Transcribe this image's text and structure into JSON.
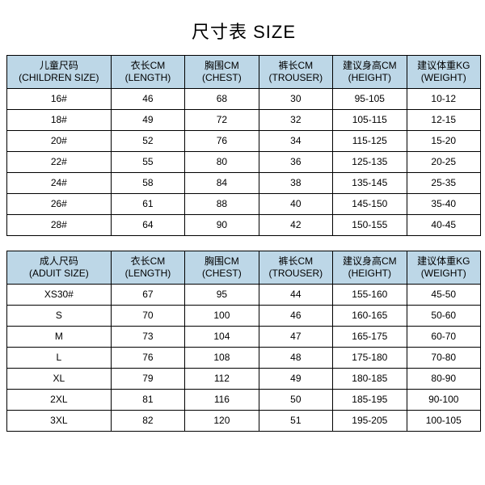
{
  "title": "尺寸表 SIZE",
  "header_color": "#bdd7e7",
  "border_color": "#000000",
  "background_color": "#ffffff",
  "children": {
    "columns": [
      {
        "cn": "儿童尺码",
        "en": "(CHILDREN SIZE)"
      },
      {
        "cn": "衣长CM",
        "en": "(LENGTH)"
      },
      {
        "cn": "胸围CM",
        "en": "(CHEST)"
      },
      {
        "cn": "裤长CM",
        "en": "(TROUSER)"
      },
      {
        "cn": "建议身高CM",
        "en": "(HEIGHT)"
      },
      {
        "cn": "建议体重KG",
        "en": "(WEIGHT)"
      }
    ],
    "rows": [
      [
        "16#",
        "46",
        "68",
        "30",
        "95-105",
        "10-12"
      ],
      [
        "18#",
        "49",
        "72",
        "32",
        "105-115",
        "12-15"
      ],
      [
        "20#",
        "52",
        "76",
        "34",
        "115-125",
        "15-20"
      ],
      [
        "22#",
        "55",
        "80",
        "36",
        "125-135",
        "20-25"
      ],
      [
        "24#",
        "58",
        "84",
        "38",
        "135-145",
        "25-35"
      ],
      [
        "26#",
        "61",
        "88",
        "40",
        "145-150",
        "35-40"
      ],
      [
        "28#",
        "64",
        "90",
        "42",
        "150-155",
        "40-45"
      ]
    ]
  },
  "adult": {
    "columns": [
      {
        "cn": "成人尺码",
        "en": "(ADUIT SIZE)"
      },
      {
        "cn": "衣长CM",
        "en": "(LENGTH)"
      },
      {
        "cn": "胸围CM",
        "en": "(CHEST)"
      },
      {
        "cn": "裤长CM",
        "en": "(TROUSER)"
      },
      {
        "cn": "建议身高CM",
        "en": "(HEIGHT)"
      },
      {
        "cn": "建议体重KG",
        "en": "(WEIGHT)"
      }
    ],
    "rows": [
      [
        "XS30#",
        "67",
        "95",
        "44",
        "155-160",
        "45-50"
      ],
      [
        "S",
        "70",
        "100",
        "46",
        "160-165",
        "50-60"
      ],
      [
        "M",
        "73",
        "104",
        "47",
        "165-175",
        "60-70"
      ],
      [
        "L",
        "76",
        "108",
        "48",
        "175-180",
        "70-80"
      ],
      [
        "XL",
        "79",
        "112",
        "49",
        "180-185",
        "80-90"
      ],
      [
        "2XL",
        "81",
        "116",
        "50",
        "185-195",
        "90-100"
      ],
      [
        "3XL",
        "82",
        "120",
        "51",
        "195-205",
        "100-105"
      ]
    ]
  }
}
